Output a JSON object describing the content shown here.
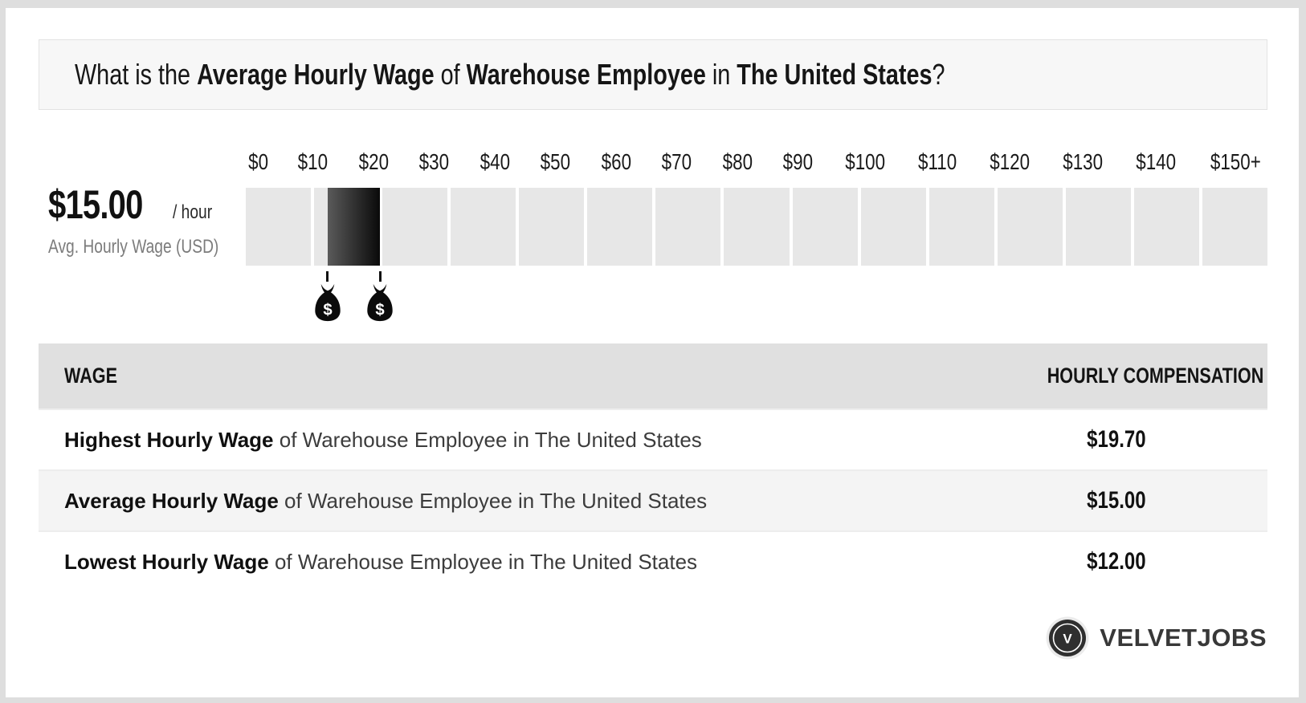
{
  "title": {
    "prefix": "What is the ",
    "bold1": "Average Hourly Wage",
    "mid1": " of ",
    "bold2": "Warehouse Employee",
    "mid2": " in ",
    "bold3": "The United States",
    "suffix": "?"
  },
  "wage_panel": {
    "amount": "$15.00",
    "per": "/ hour",
    "caption": "Avg. Hourly Wage (USD)"
  },
  "chart_data": {
    "type": "bar",
    "title": "Hourly wage range of Warehouse Employee in The United States",
    "unit": "USD per hour",
    "axis": {
      "min": 0,
      "max": 150,
      "tick_interval": 10
    },
    "tick_labels": [
      "$0",
      "$10",
      "$20",
      "$30",
      "$40",
      "$50",
      "$60",
      "$70",
      "$80",
      "$90",
      "$100",
      "$110",
      "$120",
      "$130",
      "$140",
      "$150+"
    ],
    "segment_count": 15,
    "bar_range": {
      "start": 12,
      "end": 19.7
    },
    "values": {
      "lowest": 12.0,
      "average": 15.0,
      "highest": 19.7
    },
    "markers": [
      {
        "name": "lowest-wage-moneybag",
        "value": 12
      },
      {
        "name": "highest-wage-moneybag",
        "value": 19.7
      }
    ],
    "legend": "none",
    "grid": "off"
  },
  "table": {
    "headers": {
      "wage": "WAGE",
      "compensation": "HOURLY COMPENSATION"
    },
    "rows": [
      {
        "bold": "Highest Hourly Wage",
        "rest": " of Warehouse Employee in The United States",
        "value": "$19.70"
      },
      {
        "bold": "Average Hourly Wage",
        "rest": " of Warehouse Employee in The United States",
        "value": "$15.00"
      },
      {
        "bold": "Lowest Hourly Wage",
        "rest": " of Warehouse Employee in The United States",
        "value": "$12.00"
      }
    ]
  },
  "footer": {
    "brand": "VELVETJOBS",
    "logo_letter": "V"
  },
  "colors": {
    "page_bg": "#dedede",
    "card_bg": "#ffffff",
    "title_box_bg": "#f7f7f7",
    "segment_bg": "#e7e7e7",
    "bar_gradient_start": "#5a5a5a",
    "bar_gradient_end": "#0a0a0a",
    "header_bg": "#e0e0e0",
    "row_alt_bg": "#f4f4f4",
    "marker_color": "#111111",
    "muted_text": "#7c7c7c",
    "brand_color": "#383838"
  }
}
